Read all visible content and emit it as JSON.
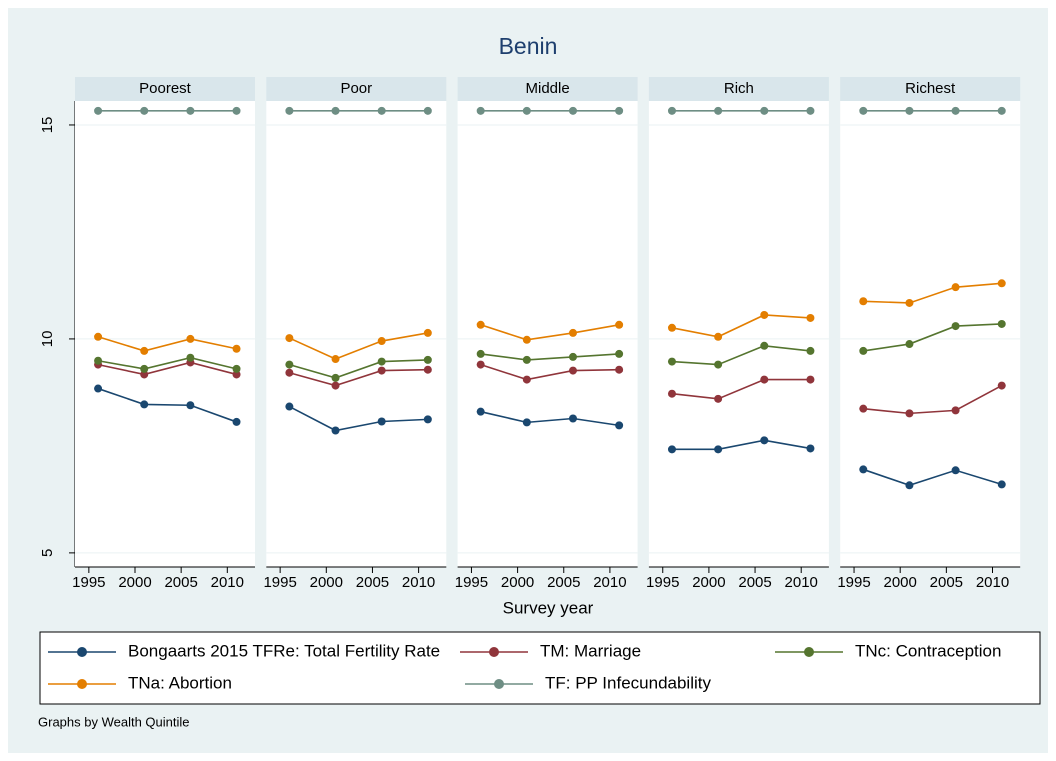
{
  "chart_data": {
    "type": "line",
    "title": "Benin",
    "x_label": "Survey year",
    "note": "Graphs by Wealth Quintile",
    "x": [
      1996,
      2001,
      2006,
      2011
    ],
    "xlim": [
      1993.5,
      2013
    ],
    "xticks": [
      1995,
      2000,
      2005,
      2010
    ],
    "ylim": [
      4.67,
      15.56
    ],
    "yticks": [
      5,
      10,
      15
    ],
    "grid": true,
    "series": [
      {
        "name": "Bongaarts 2015 TFRe: Total Fertility Rate",
        "color": "#1a476f"
      },
      {
        "name": "TM: Marriage",
        "color": "#90353b"
      },
      {
        "name": "TNc: Contraception",
        "color": "#55752f"
      },
      {
        "name": "TNa: Abortion",
        "color": "#e37e00"
      },
      {
        "name": "TF: PP Infecundability",
        "color": "#6e8e84"
      }
    ],
    "panels": [
      {
        "title": "Poorest",
        "values": [
          [
            8.84,
            8.47,
            8.45,
            8.06
          ],
          [
            9.4,
            9.17,
            9.45,
            9.17
          ],
          [
            9.49,
            9.3,
            9.56,
            9.3
          ],
          [
            10.05,
            9.72,
            10.0,
            9.77
          ],
          [
            15.33,
            15.33,
            15.33,
            15.33
          ]
        ]
      },
      {
        "title": "Poor",
        "values": [
          [
            8.42,
            7.86,
            8.07,
            8.12
          ],
          [
            9.21,
            8.91,
            9.26,
            9.28
          ],
          [
            9.4,
            9.09,
            9.47,
            9.51
          ],
          [
            10.02,
            9.53,
            9.95,
            10.14
          ],
          [
            15.33,
            15.33,
            15.33,
            15.33
          ]
        ]
      },
      {
        "title": "Middle",
        "values": [
          [
            8.3,
            8.05,
            8.14,
            7.98
          ],
          [
            9.4,
            9.05,
            9.26,
            9.28
          ],
          [
            9.65,
            9.51,
            9.58,
            9.65
          ],
          [
            10.33,
            9.98,
            10.14,
            10.33
          ],
          [
            15.33,
            15.33,
            15.33,
            15.33
          ]
        ]
      },
      {
        "title": "Rich",
        "values": [
          [
            7.42,
            7.42,
            7.63,
            7.44
          ],
          [
            8.72,
            8.6,
            9.05,
            9.05
          ],
          [
            9.47,
            9.4,
            9.84,
            9.72
          ],
          [
            10.26,
            10.05,
            10.56,
            10.49
          ],
          [
            15.33,
            15.33,
            15.33,
            15.33
          ]
        ]
      },
      {
        "title": "Richest",
        "values": [
          [
            6.95,
            6.58,
            6.93,
            6.6
          ],
          [
            8.37,
            8.26,
            8.33,
            8.91
          ],
          [
            9.72,
            9.88,
            10.3,
            10.35
          ],
          [
            10.88,
            10.84,
            11.21,
            11.3
          ],
          [
            15.33,
            15.33,
            15.33,
            15.33
          ]
        ]
      }
    ]
  }
}
